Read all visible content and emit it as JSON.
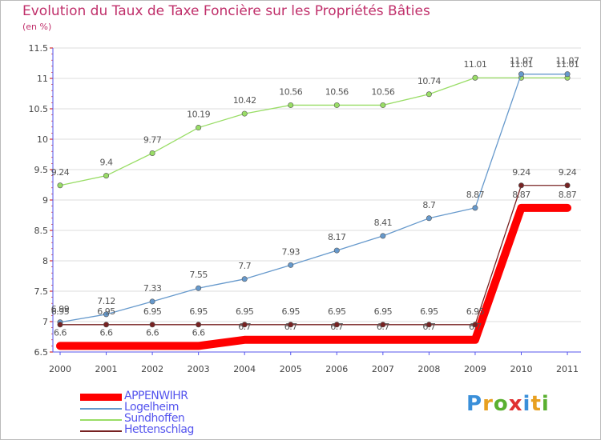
{
  "title": "Evolution du Taux de Taxe Foncière sur les Propriétés Bâties",
  "unit": "(en %)",
  "logo": "Proxiti",
  "chart_data": {
    "type": "line",
    "title": "Evolution du Taux de Taxe Foncière sur les Propriétés Bâties",
    "ylabel": "(en %)",
    "xlabel": "",
    "categories": [
      "2000",
      "2001",
      "2002",
      "2003",
      "2004",
      "2005",
      "2006",
      "2007",
      "2008",
      "2009",
      "2010",
      "2011"
    ],
    "ylim": [
      6.5,
      11.5
    ],
    "yticks": [
      "6.5",
      "7",
      "7.5",
      "8",
      "8.5",
      "9",
      "9.5",
      "10",
      "10.5",
      "11",
      "11.5"
    ],
    "series": [
      {
        "name": "APPENWIHR",
        "color": "#ff0000",
        "values": [
          6.6,
          6.6,
          6.6,
          6.6,
          6.7,
          6.7,
          6.7,
          6.7,
          6.7,
          6.7,
          8.87,
          8.87
        ],
        "labels": [
          "6.6",
          "6.6",
          "6.6",
          "6.6",
          "6.7",
          "6.7",
          "6.7",
          "6.7",
          "6.7",
          "6.7",
          "8.87",
          "8.87"
        ]
      },
      {
        "name": "Logelheim",
        "color": "#6699cc",
        "values": [
          6.99,
          7.12,
          7.33,
          7.55,
          7.7,
          7.93,
          8.17,
          8.41,
          8.7,
          8.87,
          11.07,
          11.07
        ],
        "labels": [
          "6.99",
          "7.12",
          "7.33",
          "7.55",
          "7.7",
          "7.93",
          "8.17",
          "8.41",
          "8.7",
          "8.87",
          "11.07",
          "11.07"
        ]
      },
      {
        "name": "Sundhoffen",
        "color": "#99dd66",
        "values": [
          9.24,
          9.4,
          9.77,
          10.19,
          10.42,
          10.56,
          10.56,
          10.56,
          10.74,
          11.01,
          11.01,
          11.01
        ],
        "labels": [
          "9.24",
          "9.4",
          "9.77",
          "10.19",
          "10.42",
          "10.56",
          "10.56",
          "10.56",
          "10.74",
          "11.01",
          "11.01",
          "11.01"
        ]
      },
      {
        "name": "Hettenschlag",
        "color": "#772222",
        "values": [
          6.95,
          6.95,
          6.95,
          6.95,
          6.95,
          6.95,
          6.95,
          6.95,
          6.95,
          6.95,
          9.24,
          9.24
        ],
        "labels": [
          "6.95",
          "6.95",
          "6.95",
          "6.95",
          "6.95",
          "6.95",
          "6.95",
          "6.95",
          "6.95",
          "6.95",
          "9.24",
          "9.24"
        ]
      }
    ],
    "legend_position": "bottom-left"
  }
}
